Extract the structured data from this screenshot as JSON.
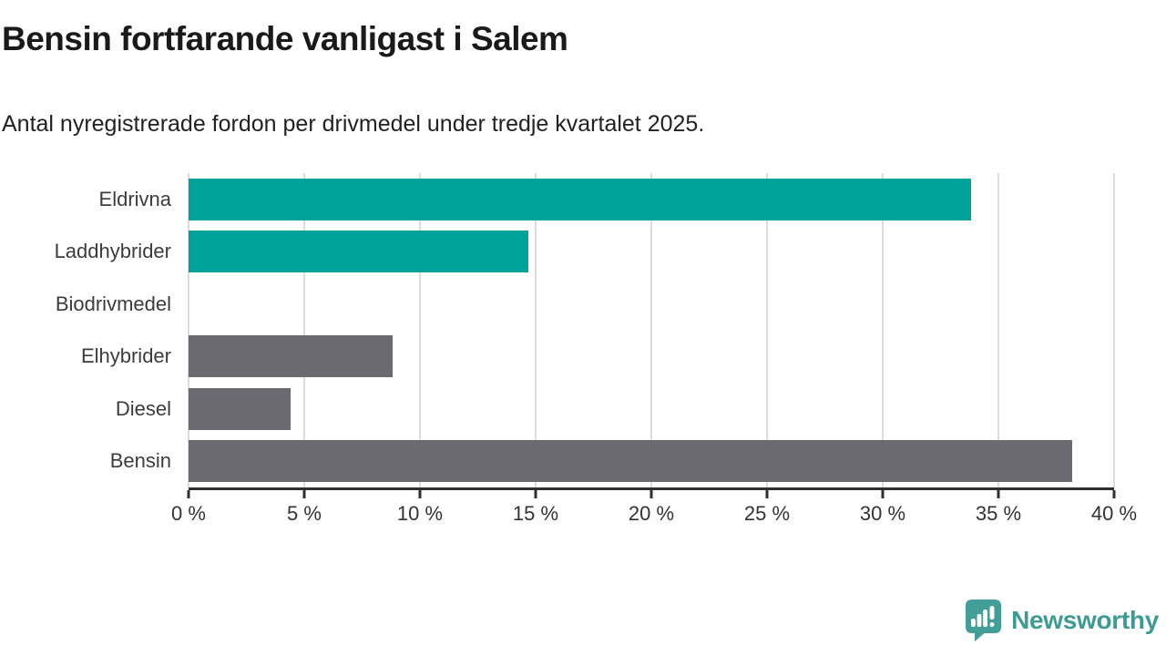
{
  "header": {
    "title": "Bensin fortfarande vanligast i Salem",
    "subtitle": "Antal nyregistrerade fordon per drivmedel under tredje kvartalet 2025."
  },
  "chart_data": {
    "type": "bar",
    "orientation": "horizontal",
    "categories": [
      "Eldrivna",
      "Laddhybrider",
      "Biodrivmedel",
      "Elhybrider",
      "Diesel",
      "Bensin"
    ],
    "values": [
      33.8,
      14.7,
      0,
      8.8,
      4.4,
      38.2
    ],
    "unit": "%",
    "xlim": [
      0,
      40
    ],
    "x_tick_values": [
      0,
      5,
      10,
      15,
      20,
      25,
      30,
      35,
      40
    ],
    "x_tick_labels": [
      "0 %",
      "5 %",
      "10 %",
      "15 %",
      "20 %",
      "25 %",
      "30 %",
      "35 %",
      "40 %"
    ],
    "bar_colors": [
      "#00a39a",
      "#00a39a",
      "#00a39a",
      "#6b6a70",
      "#6b6a70",
      "#6b6a70"
    ],
    "grid": true,
    "legend": false,
    "title": "Bensin fortfarande vanligast i Salem",
    "xlabel": "",
    "ylabel": ""
  },
  "colors": {
    "teal_bar": "#00a39a",
    "gray_bar": "#6b6a70",
    "gridline": "#dcdcdc",
    "axis": "#2f2f2f",
    "brand_teal": "#3d9a94"
  },
  "footer": {
    "brand_name": "Newsworthy",
    "logo_icon": "newsworthy-speech-bubble-chart-icon"
  }
}
